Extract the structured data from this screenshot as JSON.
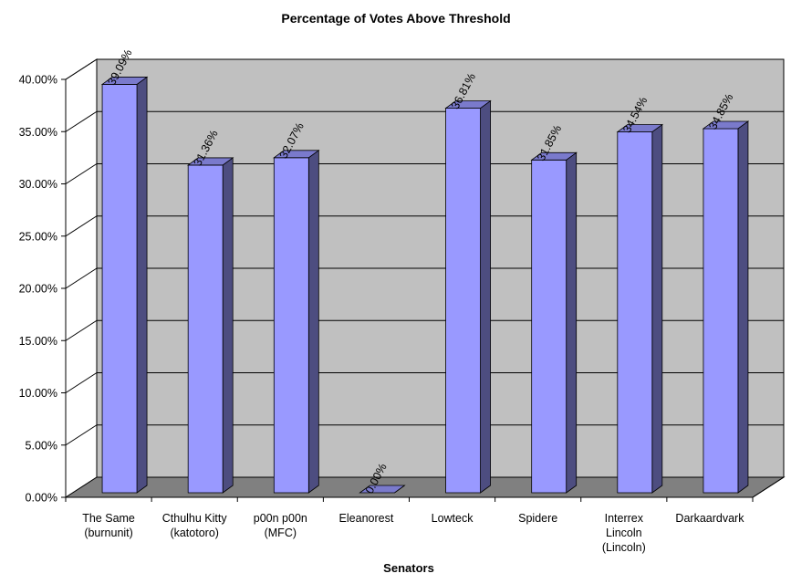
{
  "chart_data": {
    "type": "bar",
    "title": "Percentage of Votes Above Threshold",
    "xlabel": "Senators",
    "ylabel": "",
    "ylim": [
      0,
      0.4
    ],
    "y_ticks": [
      "0.00%",
      "5.00%",
      "10.00%",
      "15.00%",
      "20.00%",
      "25.00%",
      "30.00%",
      "35.00%",
      "40.00%"
    ],
    "categories": [
      [
        "The Same",
        "(burnunit)"
      ],
      [
        "Cthulhu Kitty",
        "(katotoro)"
      ],
      [
        "p00n p00n",
        "(MFC)"
      ],
      [
        "Eleanorest"
      ],
      [
        "Lowteck"
      ],
      [
        "Spidere"
      ],
      [
        "Interrex",
        "Lincoln",
        "(Lincoln)"
      ],
      [
        "Darkaardvark"
      ]
    ],
    "values": [
      0.3909,
      0.3136,
      0.3207,
      0.0,
      0.3681,
      0.3185,
      0.3454,
      0.3485
    ],
    "data_labels": [
      "39.09%",
      "31.36%",
      "32.07%",
      "0.00%",
      "36.81%",
      "31.85%",
      "34.54%",
      "34.85%"
    ],
    "grid": true,
    "legend": "none",
    "three_d": true,
    "colors": {
      "bar_front": "#9999ff",
      "bar_side": "#4d4d80",
      "bar_top": "#7a7acc",
      "back_wall": "#c0c0c0",
      "floor": "#808080",
      "gridline": "#000000"
    }
  }
}
